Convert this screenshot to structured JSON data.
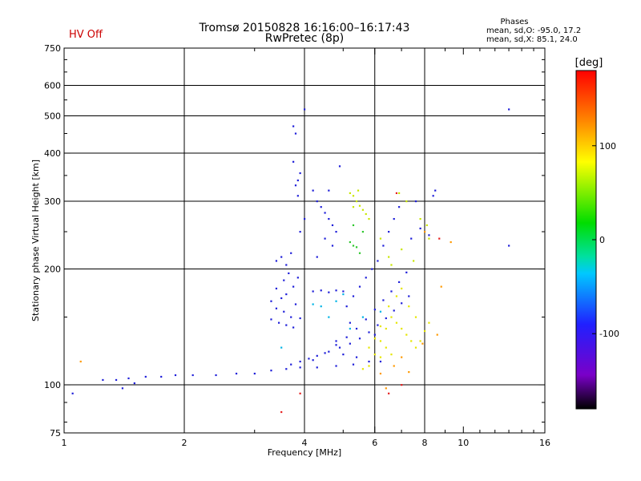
{
  "header": {
    "hv_status": "HV Off",
    "title_line1": "Tromsø 20150828 16:16:00–16:17:43",
    "title_line2": "RwPretec (8p)",
    "phases_title": "Phases",
    "phases_o": "mean, sd,O: -95.0, 17.2",
    "phases_x": "mean, sd,X:  85.1, 24.0"
  },
  "chart_data": {
    "type": "scatter",
    "title": "Tromsø 20150828 16:16:00–16:17:43",
    "subtitle": "RwPretec (8p)",
    "xlabel": "Frequency [MHz]",
    "ylabel": "Stationary phase Virtual Height [km]",
    "xscale": "log",
    "yscale": "log",
    "xlim": [
      1,
      16
    ],
    "ylim": [
      75,
      750
    ],
    "x_ticks": [
      1,
      2,
      4,
      6,
      8,
      10,
      16
    ],
    "x_tick_labels": [
      "1",
      "2",
      "4",
      "6",
      "8",
      "10",
      "16"
    ],
    "x_grid": [
      2,
      4,
      6,
      8
    ],
    "y_ticks": [
      75,
      100,
      200,
      300,
      400,
      500,
      600,
      750
    ],
    "y_tick_labels": [
      "75",
      "100",
      "200",
      "300",
      "400",
      "500",
      "600",
      "750"
    ],
    "y_grid": [
      100,
      200,
      300,
      400,
      500,
      600
    ],
    "grid": true,
    "colorbar": {
      "label": "[deg]",
      "range": [
        -180,
        180
      ],
      "ticks": [
        100,
        0,
        -100
      ],
      "tick_labels": [
        "100",
        "0",
        "-100"
      ],
      "colors": [
        "#000000",
        "#7a00c8",
        "#2020ff",
        "#00c8ff",
        "#00e0a0",
        "#00dd00",
        "#ffff00",
        "#ff8800",
        "#ff0000"
      ]
    },
    "series": [
      {
        "color": "#1f1fd9",
        "points": [
          [
            1.05,
            95
          ],
          [
            1.25,
            103
          ],
          [
            1.35,
            103
          ],
          [
            1.4,
            98
          ],
          [
            1.45,
            104
          ],
          [
            1.5,
            101
          ],
          [
            1.6,
            105
          ],
          [
            1.75,
            105
          ],
          [
            1.9,
            106
          ],
          [
            2.1,
            106
          ],
          [
            2.4,
            106
          ],
          [
            2.7,
            107
          ],
          [
            3.0,
            107
          ],
          [
            3.3,
            109
          ],
          [
            3.6,
            110
          ],
          [
            3.9,
            111
          ],
          [
            4.3,
            111
          ],
          [
            4.8,
            112
          ],
          [
            5.3,
            113
          ],
          [
            5.8,
            115
          ],
          [
            3.7,
            113
          ],
          [
            3.9,
            115
          ],
          [
            4.1,
            117
          ],
          [
            4.3,
            119
          ],
          [
            4.6,
            122
          ],
          [
            4.9,
            125
          ],
          [
            5.2,
            128
          ],
          [
            5.5,
            132
          ],
          [
            5.8,
            137
          ],
          [
            6.1,
            143
          ],
          [
            6.4,
            149
          ],
          [
            6.7,
            156
          ],
          [
            7.0,
            163
          ],
          [
            7.3,
            170
          ],
          [
            4.2,
            116
          ],
          [
            4.5,
            121
          ],
          [
            4.8,
            127
          ],
          [
            5.1,
            133
          ],
          [
            5.4,
            140
          ],
          [
            5.7,
            148
          ],
          [
            6.0,
            157
          ],
          [
            6.3,
            166
          ],
          [
            6.6,
            175
          ],
          [
            6.9,
            185
          ],
          [
            7.2,
            196
          ],
          [
            3.3,
            165
          ],
          [
            3.4,
            158
          ],
          [
            3.5,
            168
          ],
          [
            3.55,
            155
          ],
          [
            3.6,
            172
          ],
          [
            3.7,
            150
          ],
          [
            3.75,
            180
          ],
          [
            3.8,
            162
          ],
          [
            3.85,
            190
          ],
          [
            3.3,
            148
          ],
          [
            3.45,
            145
          ],
          [
            3.6,
            143
          ],
          [
            3.75,
            141
          ],
          [
            3.9,
            149
          ],
          [
            3.55,
            187
          ],
          [
            3.65,
            195
          ],
          [
            3.4,
            178
          ],
          [
            4.2,
            175
          ],
          [
            4.4,
            176
          ],
          [
            4.6,
            174
          ],
          [
            4.8,
            176
          ],
          [
            5.0,
            175
          ],
          [
            3.75,
            470
          ],
          [
            3.8,
            450
          ],
          [
            3.8,
            330
          ],
          [
            3.85,
            340
          ],
          [
            3.9,
            355
          ],
          [
            3.75,
            380
          ],
          [
            3.9,
            250
          ],
          [
            4.0,
            520
          ],
          [
            3.85,
            310
          ],
          [
            4.3,
            300
          ],
          [
            4.4,
            290
          ],
          [
            4.5,
            280
          ],
          [
            4.6,
            270
          ],
          [
            4.7,
            260
          ],
          [
            4.8,
            250
          ],
          [
            4.5,
            240
          ],
          [
            4.6,
            320
          ],
          [
            4.9,
            370
          ],
          [
            4.7,
            230
          ],
          [
            4.3,
            215
          ],
          [
            4.2,
            320
          ],
          [
            4.0,
            270
          ],
          [
            3.4,
            210
          ],
          [
            3.5,
            215
          ],
          [
            3.6,
            205
          ],
          [
            3.7,
            220
          ],
          [
            5.1,
            160
          ],
          [
            5.3,
            170
          ],
          [
            5.5,
            180
          ],
          [
            5.7,
            190
          ],
          [
            5.9,
            200
          ],
          [
            6.1,
            210
          ],
          [
            6.3,
            230
          ],
          [
            6.5,
            250
          ],
          [
            6.7,
            270
          ],
          [
            7.4,
            240
          ],
          [
            7.8,
            255
          ],
          [
            8.2,
            245
          ],
          [
            8.5,
            320
          ],
          [
            8.4,
            310
          ],
          [
            13.0,
            520
          ],
          [
            13.0,
            230
          ],
          [
            7.6,
            300
          ],
          [
            6.9,
            290
          ],
          [
            4.8,
            130
          ],
          [
            5.0,
            120
          ],
          [
            5.4,
            118
          ],
          [
            6.0,
            135
          ],
          [
            5.2,
            145
          ],
          [
            6.2,
            115
          ]
        ]
      },
      {
        "color": "#00b4e6",
        "points": [
          [
            4.4,
            160
          ],
          [
            4.6,
            150
          ],
          [
            4.8,
            165
          ],
          [
            5.2,
            140
          ],
          [
            5.0,
            172
          ],
          [
            3.5,
            125
          ],
          [
            6.2,
            155
          ],
          [
            5.6,
            150
          ],
          [
            4.2,
            162
          ]
        ]
      },
      {
        "color": "#2ec82e",
        "points": [
          [
            5.2,
            235
          ],
          [
            5.3,
            230
          ],
          [
            5.4,
            228
          ],
          [
            5.6,
            250
          ],
          [
            5.5,
            220
          ],
          [
            5.3,
            260
          ]
        ]
      },
      {
        "color": "#c8e600",
        "points": [
          [
            5.2,
            315
          ],
          [
            5.3,
            310
          ],
          [
            5.4,
            300
          ],
          [
            5.5,
            292
          ],
          [
            5.6,
            285
          ],
          [
            5.7,
            278
          ],
          [
            5.8,
            270
          ],
          [
            5.3,
            290
          ],
          [
            5.45,
            320
          ],
          [
            6.9,
            315
          ],
          [
            7.2,
            300
          ],
          [
            7.8,
            270
          ],
          [
            8.1,
            260
          ],
          [
            8.2,
            240
          ],
          [
            7.0,
            225
          ],
          [
            7.5,
            210
          ],
          [
            6.6,
            205
          ],
          [
            6.2,
            240
          ],
          [
            6.5,
            215
          ]
        ]
      },
      {
        "color": "#e6e600",
        "points": [
          [
            5.6,
            110
          ],
          [
            5.8,
            112
          ],
          [
            6.0,
            120
          ],
          [
            6.2,
            130
          ],
          [
            6.4,
            140
          ],
          [
            6.6,
            150
          ],
          [
            6.8,
            145
          ],
          [
            7.0,
            140
          ],
          [
            7.2,
            135
          ],
          [
            7.4,
            130
          ],
          [
            7.6,
            125
          ],
          [
            7.8,
            130
          ],
          [
            8.0,
            138
          ],
          [
            8.2,
            145
          ],
          [
            5.8,
            125
          ],
          [
            6.0,
            132
          ],
          [
            6.2,
            142
          ],
          [
            6.5,
            160
          ],
          [
            6.8,
            170
          ],
          [
            7.0,
            178
          ],
          [
            7.3,
            160
          ],
          [
            7.6,
            150
          ],
          [
            6.2,
            118
          ],
          [
            6.4,
            125
          ],
          [
            6.6,
            120
          ]
        ]
      },
      {
        "color": "#ff9900",
        "points": [
          [
            1.1,
            115
          ],
          [
            6.2,
            107
          ],
          [
            6.4,
            98
          ],
          [
            6.7,
            112
          ],
          [
            7.0,
            118
          ],
          [
            7.3,
            108
          ],
          [
            7.9,
            128
          ],
          [
            8.0,
            250
          ],
          [
            9.3,
            235
          ],
          [
            8.8,
            180
          ],
          [
            8.6,
            135
          ]
        ]
      },
      {
        "color": "#e62020",
        "points": [
          [
            3.5,
            85
          ],
          [
            3.9,
            95
          ],
          [
            6.5,
            95
          ],
          [
            7.0,
            100
          ],
          [
            6.8,
            315
          ],
          [
            8.7,
            240
          ]
        ]
      }
    ]
  }
}
